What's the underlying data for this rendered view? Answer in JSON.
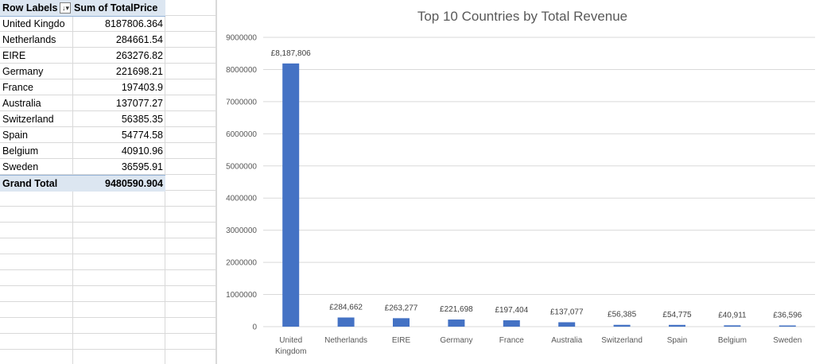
{
  "pivot": {
    "header": {
      "row_labels": "Row Labels",
      "sum_label": "Sum of TotalPrice"
    },
    "rows": [
      {
        "label": "United Kingdo",
        "value": "8187806.364"
      },
      {
        "label": "Netherlands",
        "value": "284661.54"
      },
      {
        "label": "EIRE",
        "value": "263276.82"
      },
      {
        "label": "Germany",
        "value": "221698.21"
      },
      {
        "label": "France",
        "value": "197403.9"
      },
      {
        "label": "Australia",
        "value": "137077.27"
      },
      {
        "label": "Switzerland",
        "value": "56385.35"
      },
      {
        "label": "Spain",
        "value": "54774.58"
      },
      {
        "label": "Belgium",
        "value": "40910.96"
      },
      {
        "label": "Sweden",
        "value": "36595.91"
      }
    ],
    "grand_total": {
      "label": "Grand Total",
      "value": "9480590.904"
    }
  },
  "chart_data": {
    "type": "bar",
    "title": "Top 10 Countries by Total Revenue",
    "categories": [
      [
        "United",
        "Kingdom"
      ],
      [
        "Netherlands"
      ],
      [
        "EIRE"
      ],
      [
        "Germany"
      ],
      [
        "France"
      ],
      [
        "Australia"
      ],
      [
        "Switzerland"
      ],
      [
        "Spain"
      ],
      [
        "Belgium"
      ],
      [
        "Sweden"
      ]
    ],
    "values": [
      8187806.364,
      284661.54,
      263276.82,
      221698.21,
      197403.9,
      137077.27,
      56385.35,
      54774.58,
      40910.96,
      36595.91
    ],
    "data_labels": [
      "£8,187,806",
      "£284,662",
      "£263,277",
      "£221,698",
      "£197,404",
      "£137,077",
      "£56,385",
      "£54,775",
      "£40,911",
      "£36,596"
    ],
    "yticks": [
      0,
      1000000,
      2000000,
      3000000,
      4000000,
      5000000,
      6000000,
      7000000,
      8000000,
      9000000
    ],
    "ylim": [
      0,
      9000000
    ],
    "xlabel": "",
    "ylabel": "",
    "grid": true,
    "legend": "none",
    "bar_color": "#4472c4"
  }
}
